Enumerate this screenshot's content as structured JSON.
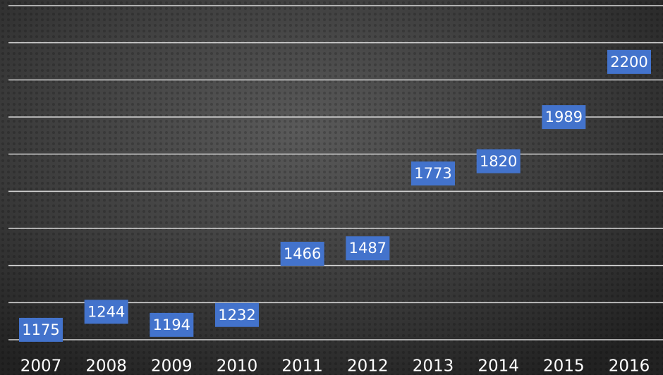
{
  "chart_data": {
    "type": "bar",
    "categories": [
      "2007",
      "2008",
      "2009",
      "2010",
      "2011",
      "2012",
      "2013",
      "2014",
      "2015",
      "2016"
    ],
    "values": [
      1175,
      1244,
      1194,
      1232,
      1466,
      1487,
      1773,
      1820,
      1989,
      2200
    ],
    "color": "#4373cc",
    "ylim": [
      1137,
      2437
    ]
  }
}
